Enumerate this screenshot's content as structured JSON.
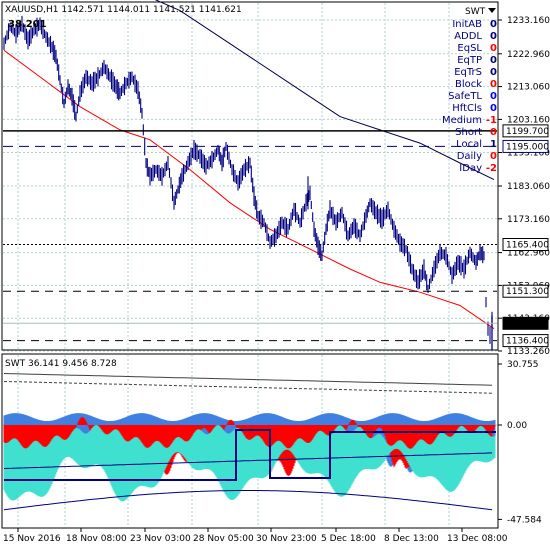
{
  "header": {
    "symbol_line": "XAUUSD,H1  1142.571 1144.011 1141.521 1141.621",
    "big_value": "38.201",
    "panel_name": "SWT"
  },
  "info_panel": [
    {
      "label": "InitAB",
      "value": "0",
      "value_color": "#000080"
    },
    {
      "label": "ADDL",
      "value": "0",
      "value_color": "#000080"
    },
    {
      "label": "EqSL",
      "value": "0",
      "value_color": "#ff0000"
    },
    {
      "label": "EqTP",
      "value": "0",
      "value_color": "#000080"
    },
    {
      "label": "EqTrS",
      "value": "0",
      "value_color": "#000080"
    },
    {
      "label": "Block",
      "value": "0",
      "value_color": "#ff0000"
    },
    {
      "label": "SafeTL",
      "value": "0",
      "value_color": "#0000ff"
    },
    {
      "label": "HftCls",
      "value": "0",
      "value_color": "#0000ff"
    },
    {
      "label": "Medium",
      "value": "-1",
      "value_color": "#ff0000"
    },
    {
      "label": "Short",
      "value": "0",
      "value_color": "#ff0000"
    },
    {
      "label": "Local",
      "value": "1",
      "value_color": "#000080"
    },
    {
      "label": "Daily",
      "value": "0",
      "value_color": "#ff0000"
    },
    {
      "label": "IDay",
      "value": "-2",
      "value_color": "#ff0000"
    }
  ],
  "price_axis": [
    "1233.160",
    "1222.960",
    "1213.060",
    "1203.160",
    "1193.160",
    "1183.060",
    "1173.160",
    "1162.960",
    "1153.060",
    "1143.160",
    "1133.260"
  ],
  "price_tags": [
    {
      "value": "1199.700",
      "style": "boxed"
    },
    {
      "value": "1195.000",
      "style": "boxed-blue"
    },
    {
      "value": "1165.400",
      "style": "boxed"
    },
    {
      "value": "1151.300",
      "style": "boxed"
    },
    {
      "value": "1141.621",
      "style": "dark"
    },
    {
      "value": "1136.400",
      "style": "boxed"
    }
  ],
  "subwindow": {
    "label": "SWT  36.141  9.456  8.728",
    "axis": [
      "30.755",
      "0.00",
      "-47.584"
    ]
  },
  "time_axis": [
    "15 Nov 2016",
    "18 Nov 08:00",
    "23 Nov 03:00",
    "28 Nov 05:00",
    "30 Nov 23:00",
    "5 Dec 18:00",
    "8 Dec 13:00",
    "13 Dec 08:00"
  ],
  "colors": {
    "candles": "#000080",
    "ma_red": "#ff0000",
    "ma_dark": "#000040",
    "grid": "#b0d0d0",
    "hist_red": "#ff0000",
    "hist_blue": "#4080e0",
    "hist_cyan": "#40e0d0"
  }
}
